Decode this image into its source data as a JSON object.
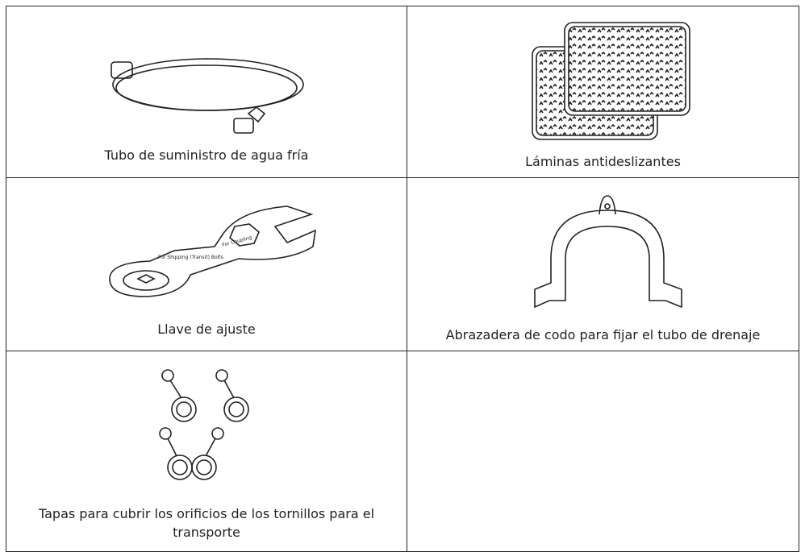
{
  "table": {
    "cells": [
      {
        "caption": "Tubo de suministro de agua fría"
      },
      {
        "caption": "Láminas antideslizantes"
      },
      {
        "caption": "Llave de ajuste",
        "image_labels": [
          "For Coupling",
          "For Shipping (Transit) Bolts"
        ]
      },
      {
        "caption": "Abrazadera de codo para fijar el tubo de drenaje"
      },
      {
        "caption": "Tapas para cubrir los orificios de los tornillos para el transporte"
      },
      {}
    ]
  }
}
